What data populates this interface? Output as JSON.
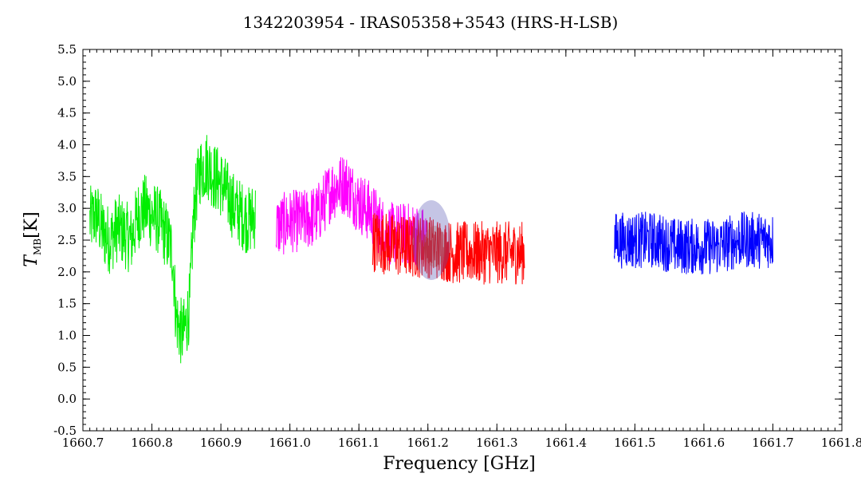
{
  "chart_data": {
    "type": "line",
    "title": "1342203954 - IRAS05358+3543 (HRS-H-LSB)",
    "xlabel": "Frequency [GHz]",
    "ylabel_main": "T",
    "ylabel_sub": "MB",
    "ylabel_unit": "[K]",
    "xlim": [
      1660.7,
      1661.8
    ],
    "ylim": [
      -0.5,
      5.5
    ],
    "x_ticks": [
      "1660.7",
      "1660.8",
      "1660.9",
      "1661.0",
      "1661.1",
      "1661.2",
      "1661.3",
      "1661.4",
      "1661.5",
      "1661.6",
      "1661.7",
      "1661.8"
    ],
    "y_ticks": [
      "-0.5",
      "0.0",
      "0.5",
      "1.0",
      "1.5",
      "2.0",
      "2.5",
      "3.0",
      "3.5",
      "4.0",
      "4.5",
      "5.0",
      "5.5"
    ],
    "grid": false,
    "series": [
      {
        "color": "#00ee00",
        "x": [
          1660.71,
          1660.72,
          1660.73,
          1660.74,
          1660.75,
          1660.76,
          1660.77,
          1660.78,
          1660.79,
          1660.8,
          1660.81,
          1660.82,
          1660.83,
          1660.835,
          1660.84,
          1660.845,
          1660.85,
          1660.855,
          1660.86,
          1660.865,
          1660.87,
          1660.88,
          1660.89,
          1660.9,
          1660.91,
          1660.92,
          1660.93,
          1660.94,
          1660.95
        ],
        "y": [
          2.8,
          2.9,
          2.6,
          2.5,
          2.7,
          2.6,
          2.5,
          2.9,
          3.0,
          2.9,
          2.8,
          2.6,
          2.3,
          1.3,
          1.1,
          1.0,
          1.2,
          1.5,
          2.8,
          3.3,
          3.6,
          3.7,
          3.5,
          3.4,
          3.2,
          3.0,
          2.9,
          2.8,
          2.9
        ],
        "noise": 0.55
      },
      {
        "color": "#ff00ff",
        "x": [
          1660.98,
          1661.0,
          1661.02,
          1661.04,
          1661.06,
          1661.08,
          1661.1,
          1661.12,
          1661.14,
          1661.16,
          1661.18,
          1661.2
        ],
        "y": [
          2.7,
          2.8,
          2.8,
          2.9,
          3.3,
          3.4,
          3.1,
          2.9,
          2.6,
          2.6,
          2.6,
          2.5
        ],
        "noise": 0.5
      },
      {
        "color": "#ff0000",
        "x": [
          1661.12,
          1661.16,
          1661.2,
          1661.24,
          1661.28,
          1661.32,
          1661.34
        ],
        "y": [
          2.5,
          2.4,
          2.4,
          2.3,
          2.3,
          2.3,
          2.3
        ],
        "noise": 0.5
      },
      {
        "color": "#0000ff",
        "x": [
          1661.47,
          1661.5,
          1661.53,
          1661.56,
          1661.59,
          1661.62,
          1661.65,
          1661.68,
          1661.7
        ],
        "y": [
          2.5,
          2.5,
          2.5,
          2.4,
          2.4,
          2.4,
          2.5,
          2.5,
          2.5
        ],
        "noise": 0.45
      }
    ]
  }
}
